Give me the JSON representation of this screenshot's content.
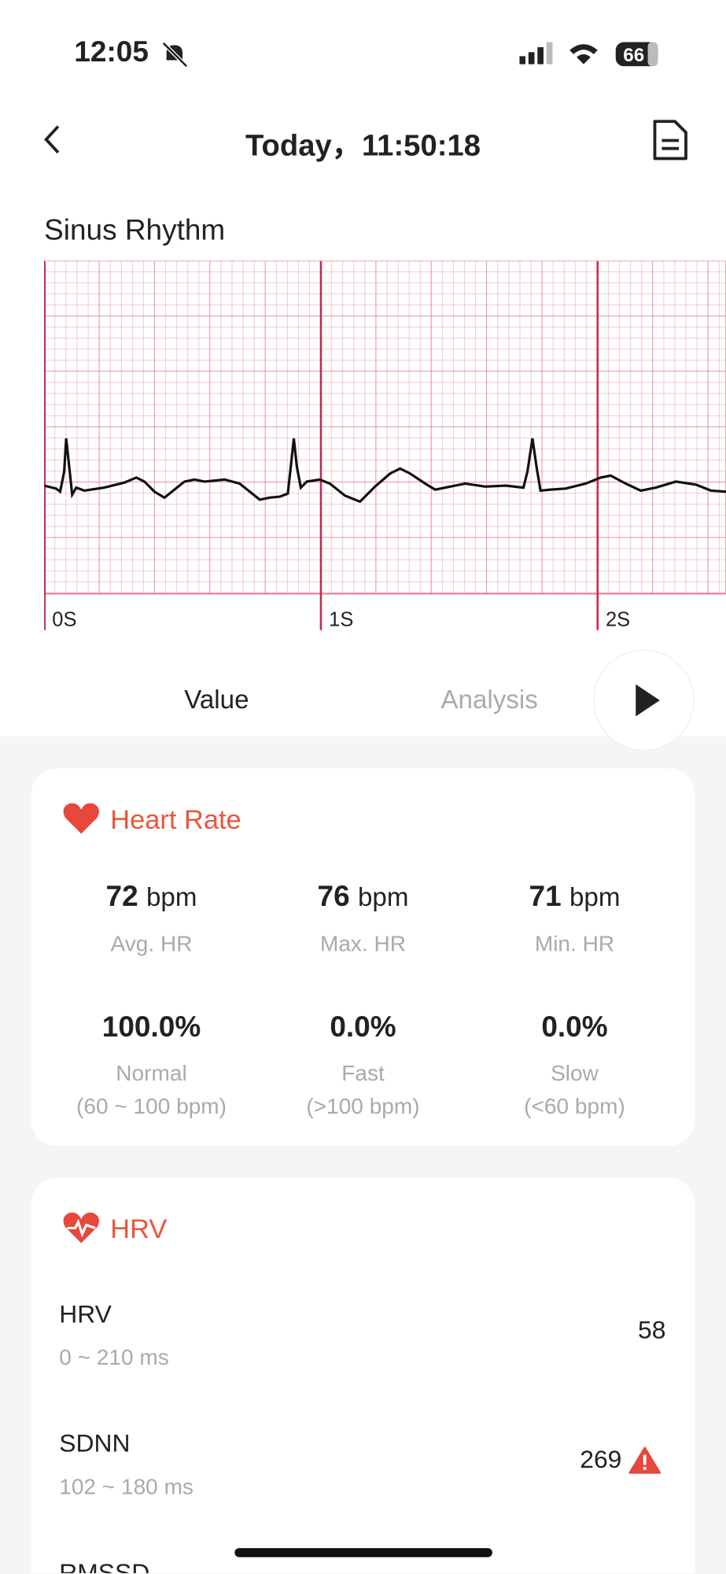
{
  "status_bar": {
    "time": "12:05",
    "battery": "66"
  },
  "header": {
    "title": "Today，11:50:18"
  },
  "ecg": {
    "label": "Sinus Rhythm",
    "time_labels": [
      "0S",
      "1S",
      "2S"
    ]
  },
  "tabs": [
    "Value",
    "Analysis"
  ],
  "heart_rate": {
    "title": "Heart Rate",
    "stats": [
      {
        "value": "72",
        "unit": "bpm",
        "label": "Avg. HR"
      },
      {
        "value": "76",
        "unit": "bpm",
        "label": "Max. HR"
      },
      {
        "value": "71",
        "unit": "bpm",
        "label": "Min. HR"
      }
    ],
    "zones": [
      {
        "value": "100.0%",
        "label": "Normal",
        "range": "(60 ~ 100 bpm)"
      },
      {
        "value": "0.0%",
        "label": "Fast",
        "range": "(>100 bpm)"
      },
      {
        "value": "0.0%",
        "label": "Slow",
        "range": "(<60 bpm)"
      }
    ]
  },
  "hrv": {
    "title": "HRV",
    "items": [
      {
        "name": "HRV",
        "range": "0 ~ 210 ms",
        "value": "58"
      },
      {
        "name": "SDNN",
        "range": "102 ~ 180 ms",
        "value": "269"
      },
      {
        "name": "RMSSD"
      }
    ]
  }
}
